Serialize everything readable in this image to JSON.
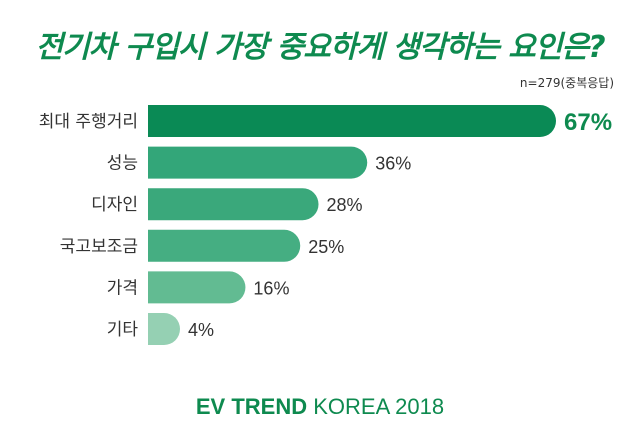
{
  "header": {
    "title": "전기차 구입시 가장 중요하게 생각하는 요인은?",
    "note": "n=279(중복응답)"
  },
  "footer": {
    "brand_bold": "EV TREND",
    "brand_light": " KOREA 2018"
  },
  "colors": {
    "title": "#0e8a4f",
    "bars": [
      "#0a8a55",
      "#33a679",
      "#3aa87b",
      "#45ae82",
      "#62bb92",
      "#95d0b3"
    ],
    "highlight_value": "#0e8a4f"
  },
  "chart_data": {
    "type": "bar",
    "orientation": "horizontal",
    "categories": [
      "최대 주행거리",
      "성능",
      "디자인",
      "국고보조금",
      "가격",
      "기타"
    ],
    "values": [
      67,
      36,
      28,
      25,
      16,
      4
    ],
    "value_labels": [
      "67%",
      "36%",
      "28%",
      "25%",
      "16%",
      "4%"
    ],
    "unit": "%",
    "xlim": [
      0,
      67
    ],
    "grid": false,
    "legend": "none"
  }
}
